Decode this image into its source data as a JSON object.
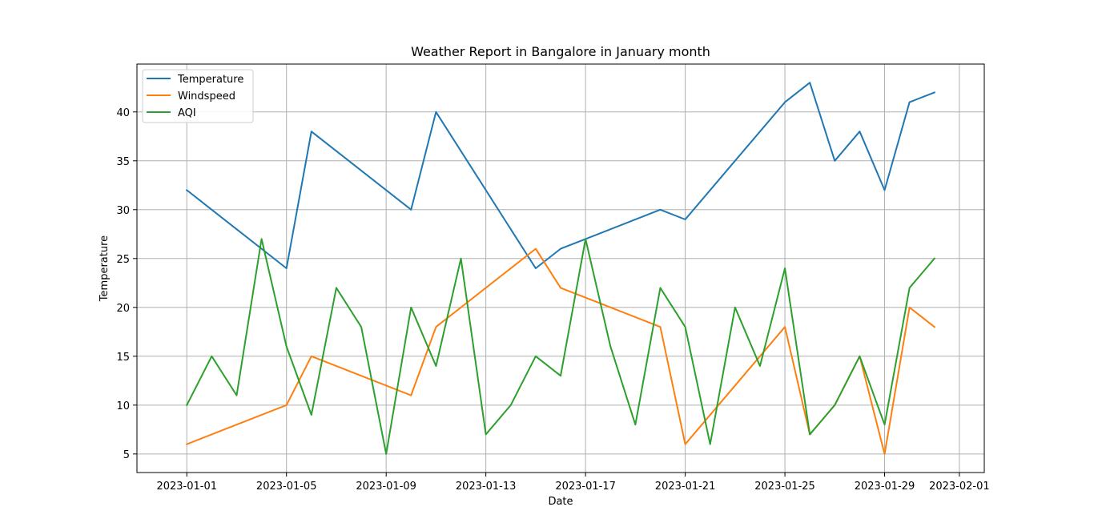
{
  "chart_data": {
    "type": "line",
    "title": "Weather Report in Bangalore in January month",
    "xlabel": "Date",
    "ylabel": "Temperature",
    "x_type": "date",
    "xlim": [
      "2022-12-30",
      "2023-02-02"
    ],
    "ylim": [
      3.1,
      44.9
    ],
    "grid": true,
    "legend_position": "upper-left",
    "x_ticks": [
      "2023-01-01",
      "2023-01-05",
      "2023-01-09",
      "2023-01-13",
      "2023-01-17",
      "2023-01-21",
      "2023-01-25",
      "2023-01-29",
      "2023-02-01"
    ],
    "y_ticks": [
      5,
      10,
      15,
      20,
      25,
      30,
      35,
      40
    ],
    "series": [
      {
        "name": "Temperature",
        "color": "#1f77b4",
        "points": [
          [
            "2023-01-01",
            32
          ],
          [
            "2023-01-05",
            24
          ],
          [
            "2023-01-06",
            38
          ],
          [
            "2023-01-10",
            30
          ],
          [
            "2023-01-11",
            40
          ],
          [
            "2023-01-15",
            24
          ],
          [
            "2023-01-16",
            26
          ],
          [
            "2023-01-17",
            27
          ],
          [
            "2023-01-20",
            30
          ],
          [
            "2023-01-21",
            29
          ],
          [
            "2023-01-25",
            41
          ],
          [
            "2023-01-26",
            43
          ],
          [
            "2023-01-27",
            35
          ],
          [
            "2023-01-28",
            38
          ],
          [
            "2023-01-29",
            32
          ],
          [
            "2023-01-30",
            41
          ],
          [
            "2023-01-31",
            42
          ]
        ]
      },
      {
        "name": "Windspeed",
        "color": "#ff7f0e",
        "points": [
          [
            "2023-01-01",
            6
          ],
          [
            "2023-01-05",
            10
          ],
          [
            "2023-01-06",
            15
          ],
          [
            "2023-01-10",
            11
          ],
          [
            "2023-01-11",
            18
          ],
          [
            "2023-01-15",
            26
          ],
          [
            "2023-01-16",
            22
          ],
          [
            "2023-01-17",
            21
          ],
          [
            "2023-01-20",
            18
          ],
          [
            "2023-01-21",
            6
          ],
          [
            "2023-01-25",
            18
          ],
          [
            "2023-01-26",
            7
          ],
          [
            "2023-01-27",
            10
          ],
          [
            "2023-01-28",
            15
          ],
          [
            "2023-01-29",
            5
          ],
          [
            "2023-01-30",
            20
          ],
          [
            "2023-01-31",
            18
          ]
        ]
      },
      {
        "name": "AQI",
        "color": "#2ca02c",
        "points": [
          [
            "2023-01-01",
            10
          ],
          [
            "2023-01-02",
            15
          ],
          [
            "2023-01-03",
            11
          ],
          [
            "2023-01-04",
            27
          ],
          [
            "2023-01-05",
            16
          ],
          [
            "2023-01-06",
            9
          ],
          [
            "2023-01-07",
            22
          ],
          [
            "2023-01-08",
            18
          ],
          [
            "2023-01-09",
            5
          ],
          [
            "2023-01-10",
            20
          ],
          [
            "2023-01-11",
            14
          ],
          [
            "2023-01-12",
            25
          ],
          [
            "2023-01-13",
            7
          ],
          [
            "2023-01-14",
            10
          ],
          [
            "2023-01-15",
            15
          ],
          [
            "2023-01-16",
            13
          ],
          [
            "2023-01-17",
            27
          ],
          [
            "2023-01-18",
            16
          ],
          [
            "2023-01-19",
            8
          ],
          [
            "2023-01-20",
            22
          ],
          [
            "2023-01-21",
            18
          ],
          [
            "2023-01-22",
            6
          ],
          [
            "2023-01-23",
            20
          ],
          [
            "2023-01-24",
            14
          ],
          [
            "2023-01-25",
            24
          ],
          [
            "2023-01-26",
            7
          ],
          [
            "2023-01-27",
            10
          ],
          [
            "2023-01-28",
            15
          ],
          [
            "2023-01-29",
            8
          ],
          [
            "2023-01-30",
            22
          ],
          [
            "2023-01-31",
            25
          ]
        ]
      }
    ]
  }
}
